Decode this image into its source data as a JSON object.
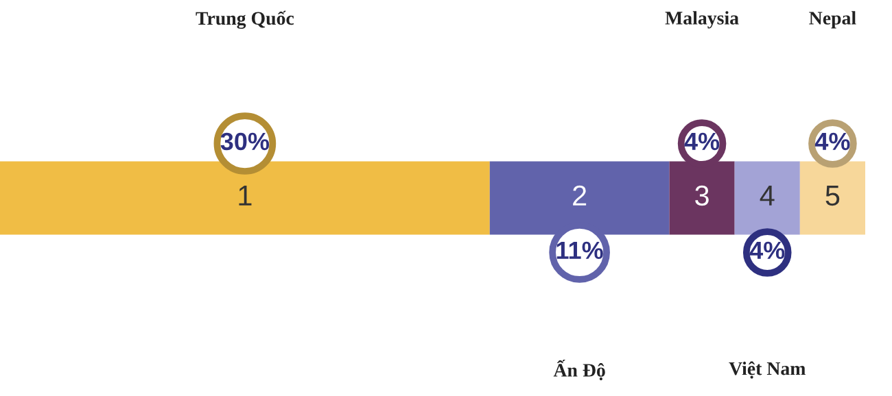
{
  "chart_data": {
    "type": "bar",
    "orientation": "horizontal",
    "stacked": true,
    "categories": [
      null
    ],
    "series": [
      {
        "color": "#f0bd45",
        "values": [
          30
        ],
        "value_labels": [
          "30%"
        ]
      },
      {
        "color": "#6163ab",
        "values": [
          11
        ],
        "value_labels": [
          "11%"
        ]
      },
      {
        "color": "#6b3560",
        "values": [
          4
        ],
        "value_labels": [
          "4%"
        ]
      },
      {
        "color": "#a3a3d6",
        "values": [
          4
        ],
        "value_labels": [
          "4%"
        ]
      },
      {
        "color": "#f7d79a",
        "values": [
          4
        ],
        "value_labels": [
          "4%"
        ]
      }
    ],
    "annotations": [
      "1",
      "2",
      "3",
      "4",
      "5",
      "Trung Quốc",
      "Ấn Độ",
      "Malaysia",
      "Việt Nam",
      "Nepal"
    ],
    "legend": false
  }
}
